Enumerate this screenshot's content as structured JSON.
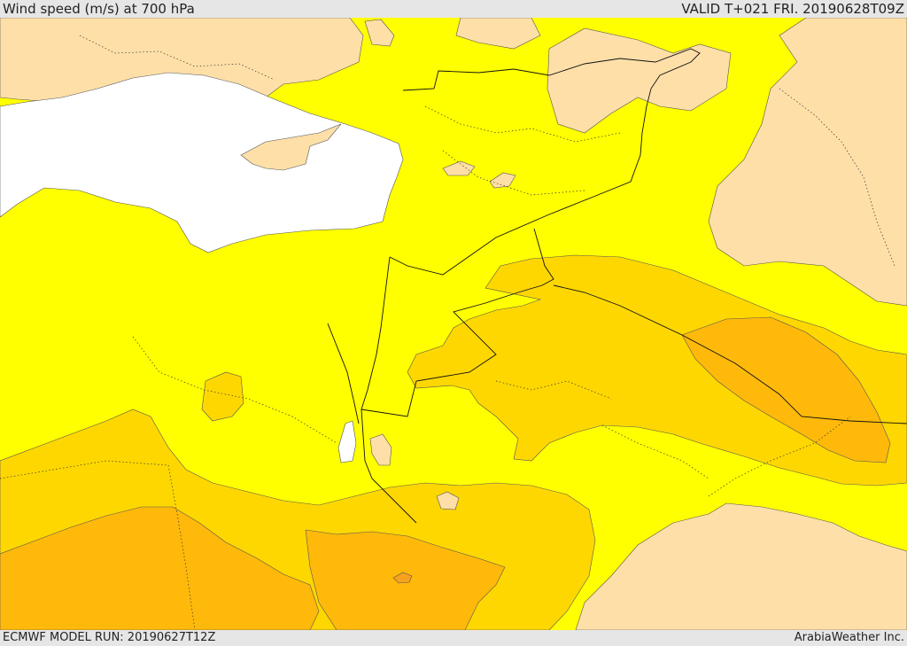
{
  "header": {
    "title": "Wind speed (m/s) at 700 hPa",
    "valid": "VALID T+021 FRI. 20190628T09Z"
  },
  "footer": {
    "model_run": "ECMWF MODEL RUN: 20190627T12Z",
    "credit": "ArabiaWeather Inc."
  },
  "colors": {
    "sea": "#ffffff",
    "band_lightest": "#ffdfa8",
    "band_yellow": "#ffff00",
    "band_gold": "#ffd700",
    "band_orange": "#ffb90a",
    "band_dark_orange": "#f7a21f"
  }
}
